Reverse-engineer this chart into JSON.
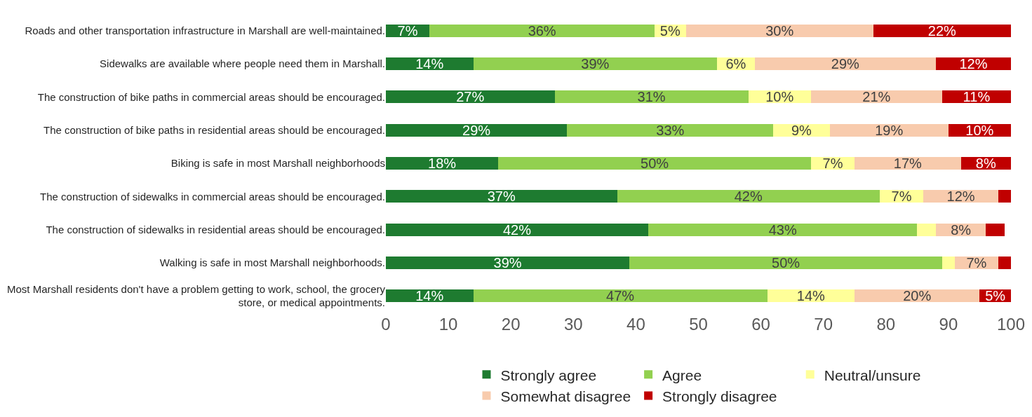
{
  "chart_data": {
    "type": "bar",
    "orientation": "horizontal",
    "stacked": true,
    "categories": [
      "Roads and other transportation infrastructure in Marshall are well-maintained.",
      "Sidewalks are available where people need them in Marshall.",
      "The construction of bike paths in commercial areas should be encouraged.",
      "The construction of bike paths in residential areas should be encouraged.",
      "Biking is safe in most Marshall neighborhoods",
      "The construction of sidewalks in commercial areas should be encouraged.",
      "The construction of sidewalks in residential areas should be encouraged.",
      "Walking is safe in most Marshall neighborhoods.",
      "Most Marshall residents don't have a problem getting to work, school, the grocery store, or medical appointments."
    ],
    "series": [
      {
        "name": "Strongly agree",
        "color": "#1e7b30",
        "values": [
          7,
          14,
          27,
          29,
          18,
          37,
          42,
          39,
          14
        ],
        "value_labels": [
          "7%",
          "14%",
          "27%",
          "29%",
          "18%",
          "37%",
          "42%",
          "39%",
          "14%"
        ]
      },
      {
        "name": "Agree",
        "color": "#92d050",
        "values": [
          36,
          39,
          31,
          33,
          50,
          42,
          43,
          50,
          47
        ],
        "value_labels": [
          "36%",
          "39%",
          "31%",
          "33%",
          "50%",
          "42%",
          "43%",
          "50%",
          "47%"
        ]
      },
      {
        "name": "Neutral/unsure",
        "color": "#ffff99",
        "values": [
          5,
          6,
          10,
          9,
          7,
          7,
          3,
          2,
          14
        ],
        "value_labels": [
          "5%",
          "6%",
          "10%",
          "9%",
          "7%",
          "7%",
          null,
          null,
          "14%"
        ]
      },
      {
        "name": "Somewhat disagree",
        "color": "#f8cbad",
        "values": [
          30,
          29,
          21,
          19,
          17,
          12,
          8,
          7,
          20
        ],
        "value_labels": [
          "30%",
          "29%",
          "21%",
          "19%",
          "17%",
          "12%",
          "8%",
          "7%",
          "20%"
        ]
      },
      {
        "name": "Strongly disagree",
        "color": "#c00000",
        "values": [
          22,
          12,
          11,
          10,
          8,
          2,
          3,
          2,
          5
        ],
        "value_labels": [
          "22%",
          "12%",
          "11%",
          "10%",
          "8%",
          null,
          null,
          null,
          "5%"
        ]
      }
    ],
    "xlim": [
      0,
      100
    ],
    "xticks": [
      0,
      10,
      20,
      30,
      40,
      50,
      60,
      70,
      80,
      90,
      100
    ],
    "legend": "bottom"
  }
}
